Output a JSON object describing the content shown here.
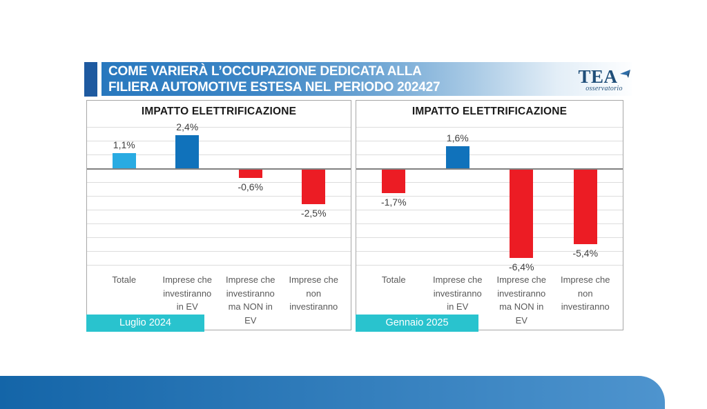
{
  "header": {
    "title_line1": "COME VARIERÀ L’OCCUPAZIONE DEDICATA ALLA",
    "title_line2": "FILIERA AUTOMOTIVE ESTESA NEL PERIODO 202427",
    "logo": {
      "name": "TEA",
      "subtitle": "osservatorio"
    }
  },
  "chart_data": [
    {
      "type": "bar",
      "title": "IMPATTO ELETTRIFICAZIONE",
      "categories": [
        "Totale",
        "Imprese che investiranno in EV",
        "Imprese che investiranno ma NON in EV",
        "Imprese che non investiranno"
      ],
      "values": [
        1.1,
        2.4,
        -0.6,
        -2.5
      ],
      "value_labels": [
        "1,1%",
        "2,4%",
        "-0,6%",
        "-2,5%"
      ],
      "bar_colors": [
        "#29ABE2",
        "#1072BB",
        "#EC1C24",
        "#EC1C24"
      ],
      "period_label": "Luglio 2024",
      "xlabel": "",
      "ylabel": "",
      "ylim": [
        -7,
        3
      ],
      "gridline_step": 1,
      "grid": true,
      "legend": false
    },
    {
      "type": "bar",
      "title": "IMPATTO ELETTRIFICAZIONE",
      "categories": [
        "Totale",
        "Imprese che investiranno in EV",
        "Imprese che investiranno ma NON in EV",
        "Imprese che non investiranno"
      ],
      "values": [
        -1.7,
        1.6,
        -6.4,
        -5.4
      ],
      "value_labels": [
        "-1,7%",
        "1,6%",
        "-6,4%",
        "-5,4%"
      ],
      "bar_colors": [
        "#EC1C24",
        "#1072BB",
        "#EC1C24",
        "#EC1C24"
      ],
      "period_label": "Gennaio 2025",
      "xlabel": "",
      "ylabel": "",
      "ylim": [
        -7,
        3
      ],
      "gridline_step": 1,
      "grid": true,
      "legend": false
    }
  ],
  "theme": {
    "title_bar_blue": "#2878BE",
    "accent_square_blue": "#1E5AA0",
    "logo_navy": "#1F4E79",
    "period_box_color": "#29C3CE",
    "grid_color": "#DCDCDC",
    "zero_line_color": "#808080",
    "panel_border": "#A6A6A6",
    "positive_cyan": "#29ABE2",
    "positive_blue": "#1072BB",
    "negative_red": "#EC1C24",
    "swoosh_gradient_start": "#1465A8",
    "swoosh_gradient_end": "#4E94CE"
  }
}
